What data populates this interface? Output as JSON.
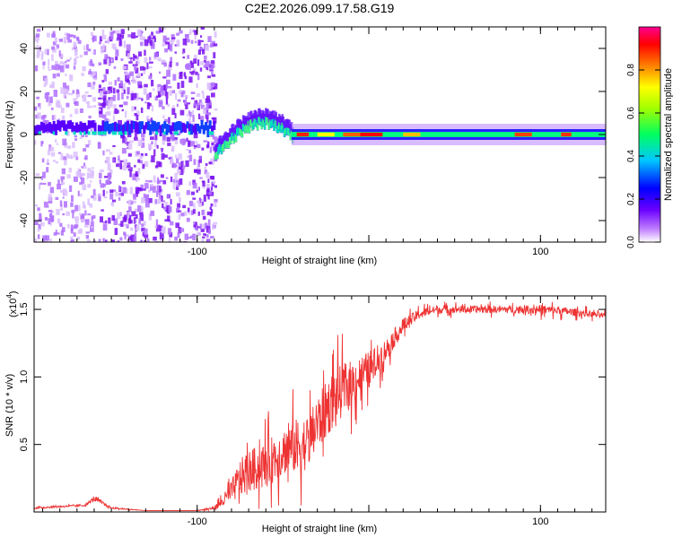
{
  "figure_title": "C2E2.2026.099.17.58.G19",
  "chart_data": [
    {
      "type": "heatmap",
      "title": "C2E2.2026.099.17.58.G19",
      "xlabel": "Height of straight line (km)",
      "ylabel": "Frequency (Hz)",
      "xlim": [
        -195,
        138
      ],
      "ylim": [
        -50,
        50
      ],
      "x_ticks": [
        -100,
        0,
        100
      ],
      "x_tick_labels": [
        "-100",
        "",
        "100"
      ],
      "y_ticks": [
        -40,
        -20,
        0,
        20,
        40
      ],
      "y_tick_labels": [
        "-40",
        "-20",
        "0",
        "20",
        "40"
      ],
      "colorbar": {
        "label": "Normalized spectral amplitude",
        "range": [
          0,
          1
        ],
        "ticks": [
          0.0,
          0.2,
          0.4,
          0.6,
          0.8
        ],
        "tick_labels": [
          "0.0",
          "0.2",
          "0.4",
          "0.6",
          "0.8"
        ],
        "colormap": [
          "#ffffff",
          "#9a00ff",
          "#0000ff",
          "#00ffff",
          "#00ff00",
          "#ffff00",
          "#ff8000",
          "#ff0000",
          "#ff00a0"
        ]
      },
      "regions": [
        {
          "name": "noise-left",
          "x": [
            -195,
            -160
          ],
          "center_freq": 0,
          "spread_hz": 50,
          "amplitude": 0.15
        },
        {
          "name": "noise-dense",
          "x": [
            -158,
            -90
          ],
          "center_freq": 0,
          "spread_hz": 50,
          "amplitude": 0.25
        },
        {
          "name": "rising-tone",
          "x": [
            -90,
            -45
          ],
          "freq_start": -10,
          "freq_end": 5,
          "amplitude": 0.5
        },
        {
          "name": "stable-carrier",
          "x": [
            -45,
            138
          ],
          "center_freq": 0,
          "amplitude": 0.8
        }
      ]
    },
    {
      "type": "line",
      "xlabel": "Height of straight line (km)",
      "ylabel": "SNR (10 * v/v)",
      "y_exponent_label": "(x10",
      "y_exponent": "4",
      "xlim": [
        -195,
        138
      ],
      "ylim": [
        0,
        1.6
      ],
      "x_ticks": [
        -100,
        0,
        100
      ],
      "x_tick_labels": [
        "-100",
        "",
        "100"
      ],
      "y_ticks": [
        0.5,
        1.0,
        1.5
      ],
      "y_tick_labels": [
        "0.5",
        "1.0",
        "1.5"
      ],
      "line_color": "#ee3333",
      "series": [
        {
          "name": "SNR",
          "x": [
            -195,
            -180,
            -165,
            -160,
            -150,
            -130,
            -110,
            -100,
            -90,
            -85,
            -80,
            -75,
            -70,
            -60,
            -50,
            -40,
            -35,
            -30,
            -20,
            -10,
            0,
            10,
            20,
            30,
            40,
            60,
            80,
            100,
            120,
            138
          ],
          "y": [
            0.03,
            0.04,
            0.05,
            0.1,
            0.03,
            0.01,
            0.01,
            0.01,
            0.03,
            0.08,
            0.15,
            0.25,
            0.3,
            0.35,
            0.45,
            0.5,
            0.52,
            0.65,
            0.85,
            0.95,
            1.05,
            1.2,
            1.38,
            1.47,
            1.5,
            1.5,
            1.5,
            1.5,
            1.48,
            1.45
          ],
          "noise": [
            0.01,
            0.01,
            0.01,
            0.03,
            0.01,
            0.0,
            0.0,
            0.0,
            0.02,
            0.06,
            0.12,
            0.2,
            0.22,
            0.25,
            0.25,
            0.3,
            0.28,
            0.3,
            0.3,
            0.25,
            0.2,
            0.12,
            0.08,
            0.05,
            0.04,
            0.04,
            0.04,
            0.05,
            0.04,
            0.03
          ]
        }
      ]
    }
  ]
}
